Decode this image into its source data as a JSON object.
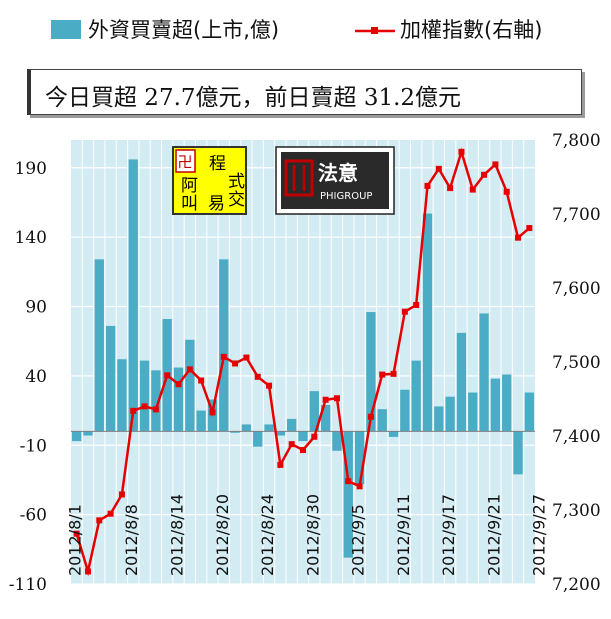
{
  "legend": {
    "bar_label": "外資買賣超(上市,億)",
    "line_label": "加權指數(右軸)"
  },
  "summary": {
    "text": "今日買超 27.7億元，前日賣超 31.2億元"
  },
  "logos": {
    "logo1_chars": [
      "程",
      "式",
      "交",
      "易",
      "阿",
      "叫"
    ],
    "logo2_text": "法意",
    "logo2_sub": "PHIGROUP"
  },
  "colors": {
    "bar": "#4bacc6",
    "line": "#e60000",
    "plot_bg": "#d3ecf3",
    "grid": "#ffffff"
  },
  "chart_data": {
    "type": "bar",
    "title": "",
    "left_axis": {
      "ylim": [
        -110,
        210
      ],
      "ticks": [
        190,
        140,
        90,
        40,
        -10,
        -60,
        -110
      ]
    },
    "right_axis": {
      "ylim": [
        7200,
        7800
      ],
      "ticks": [
        "7,800",
        "7,700",
        "7,600",
        "7,500",
        "7,400",
        "7,300",
        "7,200"
      ]
    },
    "x_labels": [
      "2012/8/1",
      "2012/8/8",
      "2012/8/14",
      "2012/8/20",
      "2012/8/24",
      "2012/8/30",
      "2012/9/5",
      "2012/9/11",
      "2012/9/17",
      "2012/9/21",
      "2012/9/27"
    ],
    "x_label_positions": [
      0,
      5,
      9,
      13,
      17,
      21,
      25,
      29,
      33,
      37,
      41
    ],
    "grid": true,
    "series": [
      {
        "name": "外資買賣超(上市,億)",
        "kind": "bar",
        "axis": "left",
        "values": [
          -7,
          -3,
          124,
          76,
          52,
          196,
          51,
          44,
          81,
          46,
          66,
          15,
          23,
          124,
          -1,
          5,
          -11,
          5,
          -3,
          9,
          -7,
          29,
          19,
          -14,
          -91,
          -38,
          86,
          16,
          -4,
          30,
          51,
          157,
          18,
          25,
          71,
          28,
          85,
          38,
          41,
          -31,
          28
        ]
      },
      {
        "name": "加權指數(右軸)",
        "kind": "line",
        "axis": "right",
        "values": [
          7268,
          7217,
          7286,
          7295,
          7321,
          7434,
          7440,
          7436,
          7482,
          7470,
          7490,
          7475,
          7432,
          7507,
          7498,
          7506,
          7480,
          7468,
          7361,
          7389,
          7381,
          7399,
          7449,
          7451,
          7339,
          7332,
          7426,
          7483,
          7484,
          7568,
          7577,
          7738,
          7761,
          7735,
          7784,
          7733,
          7753,
          7767,
          7730,
          7668,
          7681
        ]
      }
    ]
  }
}
